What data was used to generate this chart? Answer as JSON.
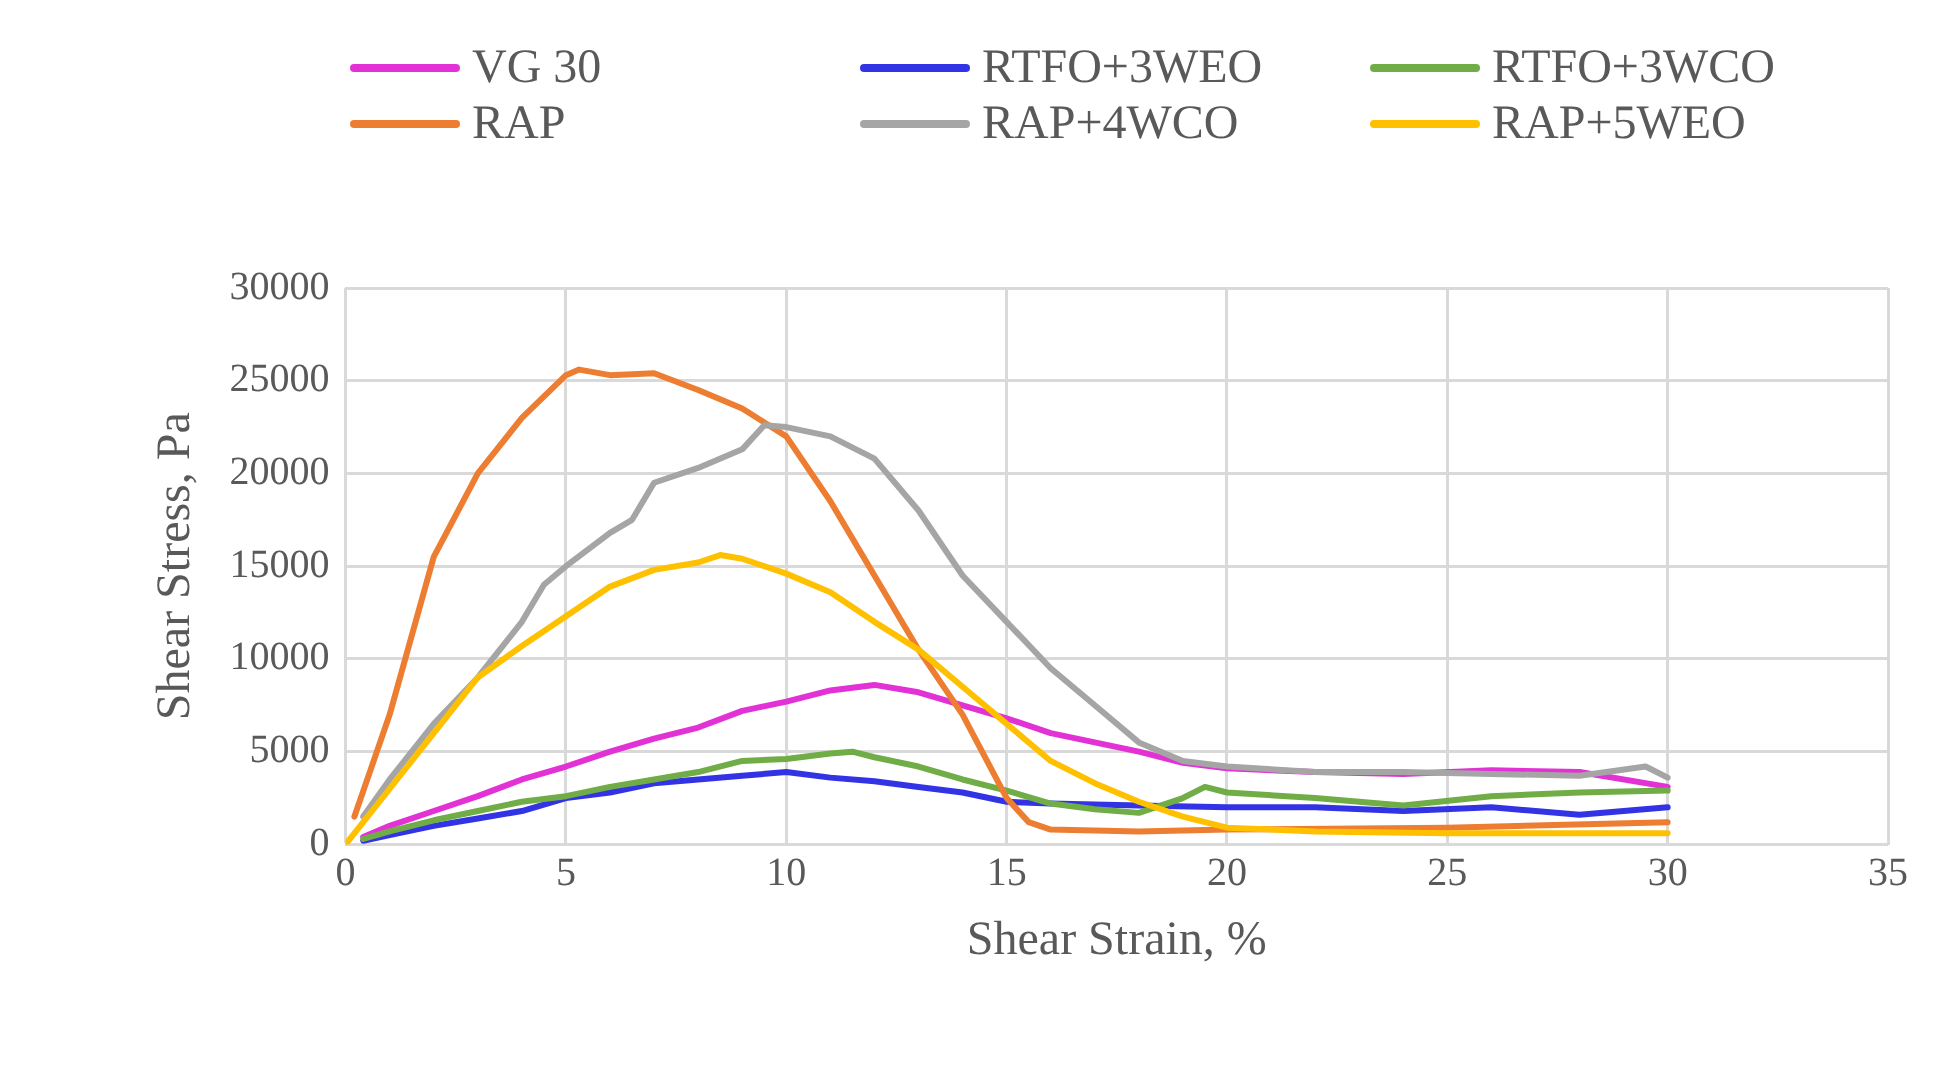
{
  "chart_data": {
    "type": "line",
    "xlabel": "Shear Strain, %",
    "ylabel": "Shear Stress, Pa",
    "xlim": [
      0,
      35
    ],
    "xticks": [
      0,
      5,
      10,
      15,
      20,
      25,
      30,
      35
    ],
    "ylim": [
      0,
      30000
    ],
    "yticks": [
      0,
      5000,
      10000,
      15000,
      20000,
      25000,
      30000
    ],
    "grid": true,
    "legend": "top",
    "marker": "none",
    "line_style": "solid",
    "series": [
      {
        "name": "VG 30",
        "color": "#e232d6",
        "x": [
          0.4,
          1,
          2,
          3,
          4,
          5,
          6,
          7,
          8,
          9,
          10,
          11,
          12,
          13,
          14,
          15,
          16,
          17,
          18,
          19,
          20,
          22,
          24,
          26,
          28,
          30
        ],
        "values": [
          400,
          1000,
          1800,
          2600,
          3500,
          4200,
          5000,
          5700,
          6300,
          7200,
          7700,
          8300,
          8600,
          8200,
          7500,
          6800,
          6000,
          5500,
          5000,
          4400,
          4100,
          3900,
          3800,
          4000,
          3900,
          3100
        ]
      },
      {
        "name": "RTFO+3WEO",
        "color": "#3333e6",
        "x": [
          0.4,
          1,
          2,
          3,
          4,
          5,
          6,
          7,
          8,
          9,
          10,
          11,
          12,
          13,
          14,
          15,
          16,
          18,
          20,
          22,
          24,
          26,
          28,
          30
        ],
        "values": [
          200,
          500,
          1000,
          1400,
          1800,
          2500,
          2800,
          3300,
          3500,
          3700,
          3900,
          3600,
          3400,
          3100,
          2800,
          2300,
          2200,
          2100,
          2000,
          2000,
          1800,
          2000,
          1600,
          2000
        ]
      },
      {
        "name": "RTFO+3WCO",
        "color": "#70ad47",
        "x": [
          0.4,
          1,
          2,
          3,
          4,
          5,
          6,
          7,
          8,
          9,
          10,
          11,
          11.5,
          12,
          13,
          14,
          15,
          16,
          17,
          18,
          19,
          19.5,
          20,
          22,
          24,
          26,
          28,
          30
        ],
        "values": [
          300,
          700,
          1300,
          1800,
          2300,
          2600,
          3100,
          3500,
          3900,
          4500,
          4600,
          4900,
          5000,
          4700,
          4200,
          3500,
          2900,
          2200,
          1900,
          1700,
          2500,
          3100,
          2800,
          2500,
          2100,
          2600,
          2800,
          2900
        ]
      },
      {
        "name": "RAP",
        "color": "#ed7d31",
        "x": [
          0.2,
          1,
          2,
          3,
          4,
          5,
          5.3,
          6,
          7,
          8,
          9,
          10,
          11,
          12,
          13,
          14,
          15,
          15.5,
          16,
          18,
          20,
          25,
          30
        ],
        "values": [
          1500,
          7000,
          15500,
          20000,
          23000,
          25300,
          25600,
          25300,
          25400,
          24500,
          23500,
          22000,
          18500,
          14500,
          10500,
          7000,
          2500,
          1200,
          800,
          700,
          800,
          900,
          1200
        ]
      },
      {
        "name": "RAP+4WCO",
        "color": "#a5a5a5",
        "x": [
          0.4,
          1,
          2,
          3,
          4,
          4.5,
          5,
          6,
          6.5,
          7,
          8,
          9,
          9.5,
          10,
          11,
          12,
          13,
          14,
          15,
          16,
          17,
          18,
          19,
          20,
          22,
          24,
          26,
          28,
          29.5,
          30
        ],
        "values": [
          1500,
          3500,
          6500,
          9000,
          12000,
          14000,
          15000,
          16800,
          17500,
          19500,
          20300,
          21300,
          22600,
          22500,
          22000,
          20800,
          18000,
          14500,
          12000,
          9500,
          7500,
          5500,
          4500,
          4200,
          3900,
          3900,
          3800,
          3700,
          4200,
          3600
        ]
      },
      {
        "name": "RAP+5WEO",
        "color": "#ffc000",
        "x": [
          0,
          1,
          2,
          3,
          4,
          5,
          6,
          7,
          8,
          8.5,
          9,
          10,
          11,
          12,
          13,
          14,
          15,
          16,
          17,
          18,
          19,
          20,
          22,
          25,
          30
        ],
        "values": [
          0,
          3000,
          6000,
          9000,
          10700,
          12300,
          13900,
          14800,
          15200,
          15600,
          15400,
          14600,
          13600,
          12000,
          10500,
          8500,
          6500,
          4500,
          3300,
          2300,
          1500,
          900,
          700,
          600,
          600
        ]
      }
    ]
  }
}
